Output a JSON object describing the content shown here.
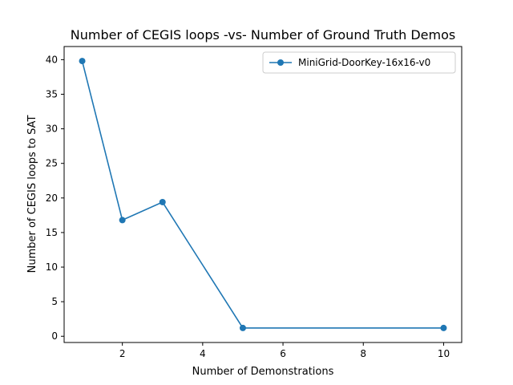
{
  "chart_data": {
    "type": "line",
    "title": "Number of CEGIS loops -vs- Number of Ground Truth Demos",
    "xlabel": "Number of Demonstrations",
    "ylabel": "Number of CEGIS loops to SAT",
    "xlim": [
      0.55,
      10.45
    ],
    "ylim": [
      -0.9,
      41.9
    ],
    "x_ticks": [
      2,
      4,
      6,
      8,
      10
    ],
    "y_ticks": [
      0,
      5,
      10,
      15,
      20,
      25,
      30,
      35,
      40
    ],
    "grid": false,
    "legend_position": "upper right",
    "series": [
      {
        "name": "MiniGrid-DoorKey-16x16-v0",
        "color": "#1f77b4",
        "marker": "circle",
        "x": [
          1,
          2,
          3,
          5,
          10
        ],
        "y": [
          39.8,
          16.8,
          19.4,
          1.2,
          1.2
        ]
      }
    ]
  }
}
